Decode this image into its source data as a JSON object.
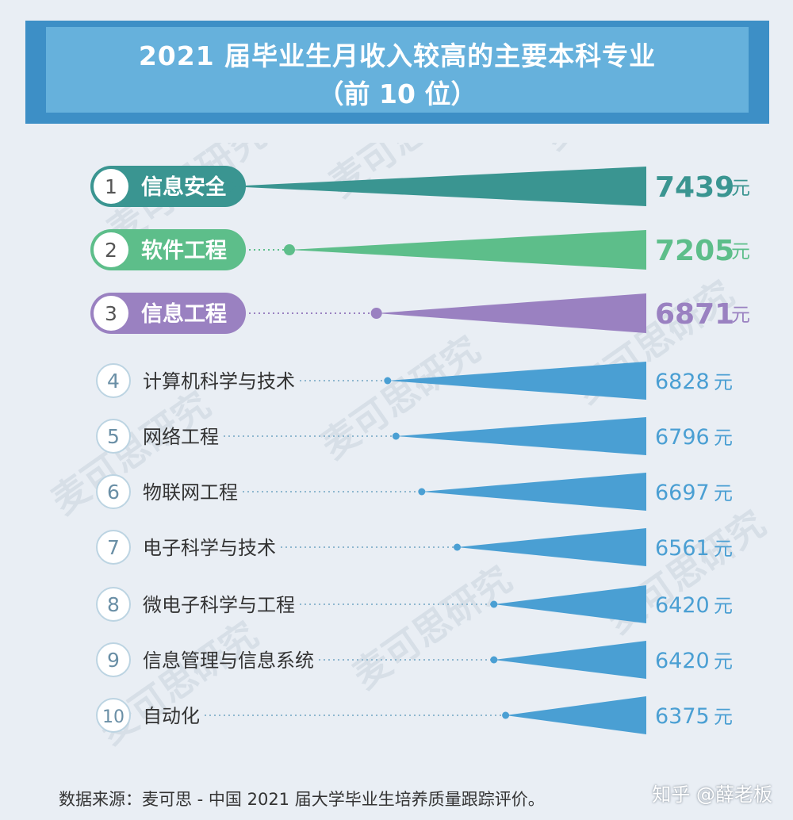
{
  "title_line1": "2021 届毕业生月收入较高的主要本科专业",
  "title_line2": "（前 10 位）",
  "chart_data": {
    "type": "bar",
    "title": "2021 届毕业生月收入较高的主要本科专业（前 10 位）",
    "unit": "元",
    "categories": [
      "信息安全",
      "软件工程",
      "信息工程",
      "计算机科学与技术",
      "网络工程",
      "物联网工程",
      "电子科学与技术",
      "微电子科学与工程",
      "信息管理与信息系统",
      "自动化"
    ],
    "ranks": [
      "1",
      "2",
      "3",
      "4",
      "5",
      "6",
      "7",
      "8",
      "9",
      "10"
    ],
    "values": [
      7439,
      7205,
      6871,
      6828,
      6796,
      6697,
      6561,
      6420,
      6420,
      6375
    ],
    "top_colors": [
      "#3a9591",
      "#5dbe8a",
      "#9a81c1"
    ],
    "other_color": "#4a9fd3"
  },
  "watermark_text": "麦可思研究",
  "footer": {
    "source": "数据来源：麦可思 - 中国 2021 届大学毕业生培养质量跟踪评价。",
    "credit": "知乎 @薛老板"
  }
}
